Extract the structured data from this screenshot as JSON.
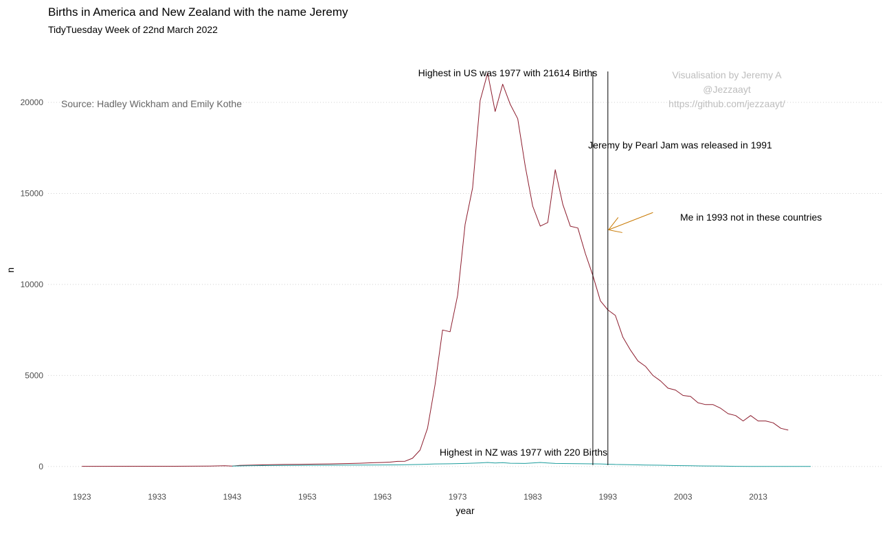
{
  "chart_data": {
    "type": "line",
    "title": "Births in America and New Zealand with the name Jeremy",
    "subtitle": "TidyTuesday Week of 22nd March 2022",
    "xlabel": "year",
    "ylabel": "n",
    "xlim": [
      1918.5,
      2029.5
    ],
    "ylim": [
      -1100,
      22000
    ],
    "x_ticks": [
      1923,
      1933,
      1943,
      1953,
      1963,
      1973,
      1983,
      1993,
      2003,
      2013
    ],
    "y_ticks": [
      0,
      5000,
      10000,
      15000,
      20000
    ],
    "grid": "horizontal dotted",
    "series": [
      {
        "color": "#8b1a2b",
        "x": [
          1923,
          1930,
          1935,
          1940,
          1942,
          1943,
          1944,
          1946,
          1948,
          1950,
          1952,
          1954,
          1956,
          1958,
          1960,
          1962,
          1963,
          1964,
          1965,
          1966,
          1967,
          1968,
          1969,
          1970,
          1971,
          1972,
          1973,
          1974,
          1975,
          1976,
          1977,
          1978,
          1979,
          1980,
          1981,
          1982,
          1983,
          1984,
          1985,
          1986,
          1987,
          1988,
          1989,
          1990,
          1991,
          1992,
          1993,
          1994,
          1995,
          1996,
          1997,
          1998,
          1999,
          2000,
          2001,
          2002,
          2003,
          2004,
          2005,
          2006,
          2007,
          2008,
          2009,
          2010,
          2011,
          2012,
          2013,
          2014,
          2015,
          2016,
          2017
        ],
        "values": [
          10,
          12,
          15,
          20,
          40,
          25,
          60,
          80,
          95,
          110,
          120,
          130,
          140,
          160,
          180,
          210,
          220,
          240,
          280,
          290,
          450,
          900,
          2100,
          4500,
          7500,
          7400,
          9400,
          13300,
          15300,
          20100,
          21614,
          19500,
          21000,
          19900,
          19100,
          16500,
          14300,
          13200,
          13400,
          16300,
          14400,
          13200,
          13100,
          11700,
          10500,
          9100,
          8600,
          8300,
          7100,
          6400,
          5800,
          5500,
          5000,
          4700,
          4300,
          4200,
          3900,
          3850,
          3500,
          3400,
          3400,
          3200,
          2900,
          2800,
          2500,
          2800,
          2500,
          2500,
          2400,
          2100,
          2000
        ]
      },
      {
        "color": "#1a9c9c",
        "x": [
          1943,
          1945,
          1948,
          1950,
          1955,
          1960,
          1965,
          1968,
          1970,
          1972,
          1974,
          1976,
          1977,
          1978,
          1979,
          1980,
          1982,
          1984,
          1985,
          1986,
          1988,
          1990,
          1992,
          1994,
          1996,
          1998,
          2000,
          2002,
          2004,
          2006,
          2008,
          2010,
          2012,
          2014,
          2016,
          2018,
          2020
        ],
        "values": [
          20,
          40,
          55,
          60,
          70,
          80,
          90,
          110,
          140,
          150,
          170,
          200,
          220,
          190,
          210,
          180,
          170,
          220,
          190,
          170,
          160,
          150,
          140,
          110,
          100,
          80,
          70,
          50,
          40,
          30,
          20,
          10,
          5,
          5,
          5,
          5,
          5
        ]
      }
    ],
    "annotations": {
      "us_peak": "Highest in US was 1977 with 21614 Births",
      "nz_peak": "Highest in NZ was 1977 with 220 Births",
      "pearl_jam": "Jeremy by Pearl Jam was released in 1991",
      "me": "Me in 1993  not in these countries",
      "source": "Source: Hadley Wickham and Emily Kothe",
      "credit": [
        "Visualisation by Jeremy A",
        "@Jezzaayt",
        "https://github.com/jezzaayt/"
      ]
    },
    "vlines": [
      1991,
      1993
    ],
    "arrow_color": "#c87800"
  }
}
